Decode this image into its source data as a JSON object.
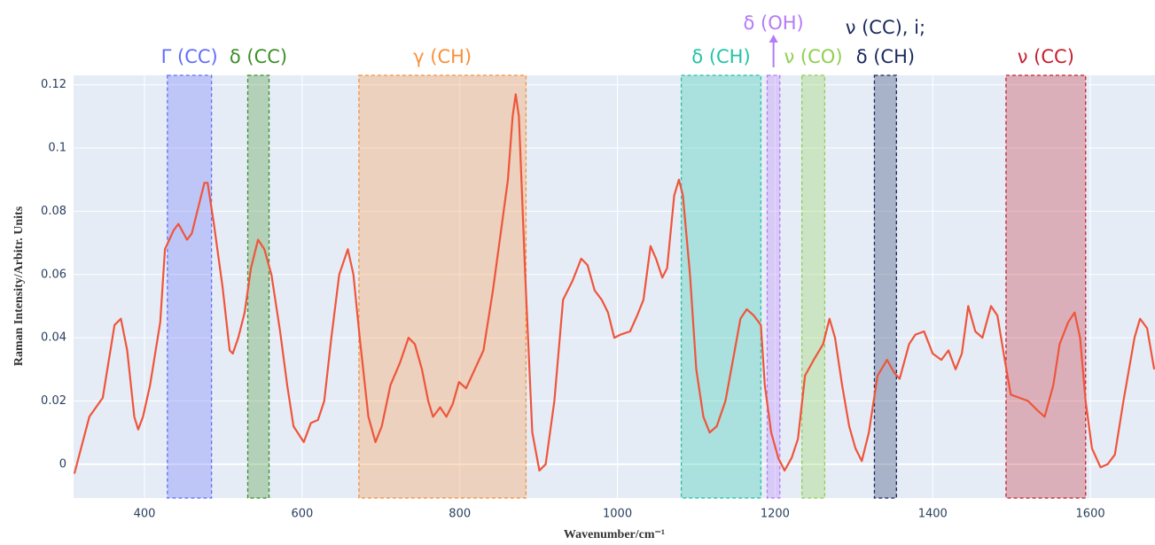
{
  "chart_data": {
    "type": "line",
    "xlabel": "Wavenumber/cm⁻¹",
    "ylabel": "Raman Intensity/Arbitr. Units",
    "xlim": [
      310,
      1682
    ],
    "ylim": [
      -0.0107,
      0.123
    ],
    "xticks": [
      400,
      600,
      800,
      1000,
      1200,
      1400,
      1600
    ],
    "yticks": [
      0,
      0.02,
      0.04,
      0.06,
      0.08,
      0.1,
      0.12
    ],
    "grid": true,
    "color": "#ef553b",
    "x": [
      311,
      330,
      347,
      362,
      370,
      378,
      387,
      392,
      398,
      407,
      420,
      426,
      437,
      443,
      454,
      460,
      467,
      476,
      480,
      488,
      499,
      508,
      512,
      519,
      527,
      535,
      544,
      552,
      561,
      572,
      581,
      589,
      602,
      611,
      620,
      628,
      637,
      647,
      658,
      665,
      673,
      684,
      693,
      701,
      712,
      724,
      735,
      743,
      752,
      760,
      766,
      775,
      783,
      791,
      799,
      808,
      819,
      830,
      842,
      853,
      861,
      867,
      871,
      875,
      883,
      892,
      901,
      909,
      920,
      931,
      943,
      954,
      962,
      971,
      980,
      988,
      996,
      1004,
      1016,
      1025,
      1033,
      1042,
      1049,
      1057,
      1063,
      1072,
      1078,
      1083,
      1092,
      1100,
      1109,
      1117,
      1126,
      1137,
      1148,
      1156,
      1164,
      1173,
      1182,
      1187,
      1195,
      1204,
      1212,
      1221,
      1229,
      1238,
      1249,
      1261,
      1269,
      1276,
      1285,
      1294,
      1302,
      1310,
      1319,
      1330,
      1342,
      1351,
      1358,
      1370,
      1378,
      1389,
      1400,
      1411,
      1420,
      1429,
      1437,
      1445,
      1454,
      1463,
      1474,
      1482,
      1490,
      1499,
      1510,
      1521,
      1533,
      1542,
      1553,
      1561,
      1572,
      1580,
      1587,
      1594,
      1602,
      1613,
      1622,
      1631,
      1642,
      1656,
      1663,
      1672,
      1681
    ],
    "values": [
      -0.003,
      0.015,
      0.021,
      0.044,
      0.046,
      0.036,
      0.015,
      0.011,
      0.015,
      0.025,
      0.045,
      0.068,
      0.074,
      0.076,
      0.071,
      0.073,
      0.08,
      0.089,
      0.089,
      0.076,
      0.056,
      0.036,
      0.035,
      0.04,
      0.048,
      0.062,
      0.071,
      0.068,
      0.06,
      0.042,
      0.025,
      0.012,
      0.007,
      0.013,
      0.014,
      0.02,
      0.04,
      0.06,
      0.068,
      0.06,
      0.04,
      0.015,
      0.007,
      0.012,
      0.025,
      0.032,
      0.04,
      0.038,
      0.03,
      0.02,
      0.015,
      0.018,
      0.015,
      0.019,
      0.026,
      0.024,
      0.03,
      0.036,
      0.055,
      0.075,
      0.09,
      0.11,
      0.117,
      0.11,
      0.06,
      0.01,
      -0.002,
      0.0,
      0.02,
      0.052,
      0.058,
      0.065,
      0.063,
      0.055,
      0.052,
      0.048,
      0.04,
      0.041,
      0.042,
      0.047,
      0.052,
      0.069,
      0.065,
      0.059,
      0.062,
      0.085,
      0.09,
      0.085,
      0.06,
      0.03,
      0.015,
      0.01,
      0.012,
      0.02,
      0.035,
      0.046,
      0.049,
      0.047,
      0.044,
      0.025,
      0.01,
      0.002,
      -0.002,
      0.002,
      0.008,
      0.028,
      0.033,
      0.038,
      0.046,
      0.04,
      0.025,
      0.012,
      0.005,
      0.001,
      0.01,
      0.028,
      0.033,
      0.029,
      0.027,
      0.038,
      0.041,
      0.042,
      0.035,
      0.033,
      0.036,
      0.03,
      0.035,
      0.05,
      0.042,
      0.04,
      0.05,
      0.047,
      0.035,
      0.022,
      0.021,
      0.02,
      0.017,
      0.015,
      0.025,
      0.038,
      0.045,
      0.048,
      0.04,
      0.02,
      0.005,
      -0.001,
      0.0,
      0.003,
      0.02,
      0.04,
      0.046,
      0.043,
      0.03
    ],
    "regions": [
      {
        "lines": [
          "Γ (CC)"
        ],
        "x0": 429,
        "x1": 485,
        "color": "#636efa"
      },
      {
        "lines": [
          "δ (CC)"
        ],
        "x0": 531,
        "x1": 558,
        "color": "#3f8f2a"
      },
      {
        "lines": [
          "γ (CH)"
        ],
        "x0": 672,
        "x1": 884,
        "color": "#f7913a"
      },
      {
        "lines": [
          "δ (CH)"
        ],
        "x0": 1081,
        "x1": 1182,
        "color": "#22c4a6"
      },
      {
        "lines": [
          "δ (OH)"
        ],
        "x0": 1190,
        "x1": 1206,
        "color": "#b57bf7",
        "arrow": true
      },
      {
        "lines": [
          "ν (CO)"
        ],
        "x0": 1234,
        "x1": 1263,
        "color": "#8fcf4f"
      },
      {
        "lines": [
          "ν (CC), i;",
          "δ (CH)"
        ],
        "x0": 1326,
        "x1": 1354,
        "color": "#1b2a5e"
      },
      {
        "lines": [
          "ν (CC)"
        ],
        "x0": 1493,
        "x1": 1594,
        "color": "#c42030"
      }
    ]
  }
}
